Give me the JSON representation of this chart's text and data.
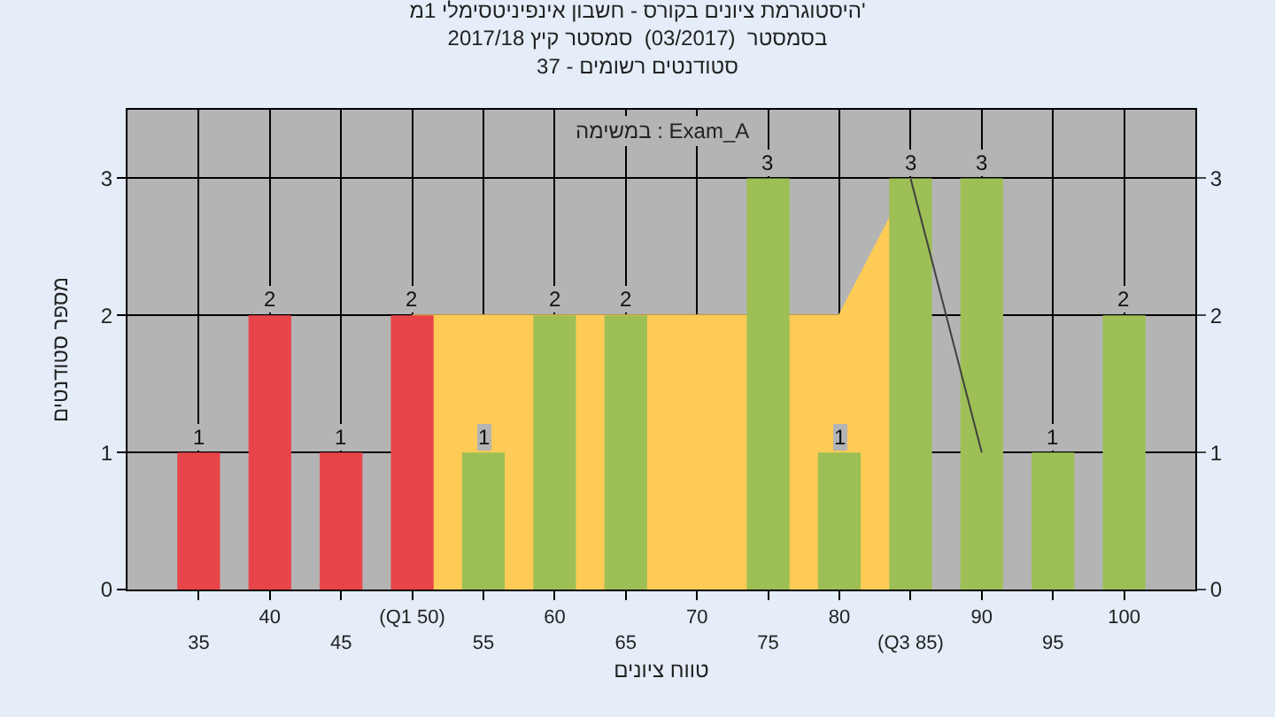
{
  "chart_data": {
    "type": "bar",
    "title": "היסטוגרמת ציונים בקורס - חשבון אינפיניטסימלי 1מ'\nבסמסטר  (03/2017)  סמסטר קיץ 2017/18\nסטודנטים רשומים - 37",
    "xlabel": "טווח ציונים",
    "ylabel": "מספר סטודנטים",
    "annotations": [
      "במשימה : Exam_A"
    ],
    "categories": [
      "35",
      "40",
      "45",
      "(Q1 50)",
      "55",
      "60",
      "65",
      "70",
      "75",
      "80",
      "(Q3 85)",
      "90",
      "95",
      "100"
    ],
    "series": [
      {
        "type": "area",
        "color": "#fecb57",
        "values": [
          null,
          null,
          null,
          2,
          2,
          2,
          2,
          2,
          2,
          2,
          3,
          null,
          null,
          null
        ]
      },
      {
        "type": "line",
        "color": "#404040",
        "values": [
          null,
          null,
          null,
          null,
          null,
          null,
          null,
          null,
          null,
          null,
          3,
          1,
          null,
          null
        ]
      },
      {
        "values": [
          1,
          2,
          1,
          2,
          1,
          2,
          2,
          0,
          3,
          1,
          3,
          3,
          1,
          2
        ],
        "colors": [
          "#e8454a",
          "#e8454a",
          "#e8454a",
          "#e8454a",
          "#9dbf55",
          "#9dbf55",
          "#9dbf55",
          "#9dbf55",
          "#9dbf55",
          "#9dbf55",
          "#9dbf55",
          "#9dbf55",
          "#9dbf55",
          "#9dbf55"
        ],
        "value_labels": [
          "1",
          "2",
          "1",
          "2",
          "1",
          "2",
          "2",
          null,
          "3",
          "1",
          "3",
          "3",
          "1",
          "2"
        ]
      }
    ],
    "ylim": [
      0,
      3.5
    ],
    "yticks": [
      0,
      1,
      2,
      3
    ],
    "y2lim": [
      0,
      3.5
    ],
    "y2ticks": [
      0,
      1,
      2,
      3
    ],
    "grid": true
  }
}
